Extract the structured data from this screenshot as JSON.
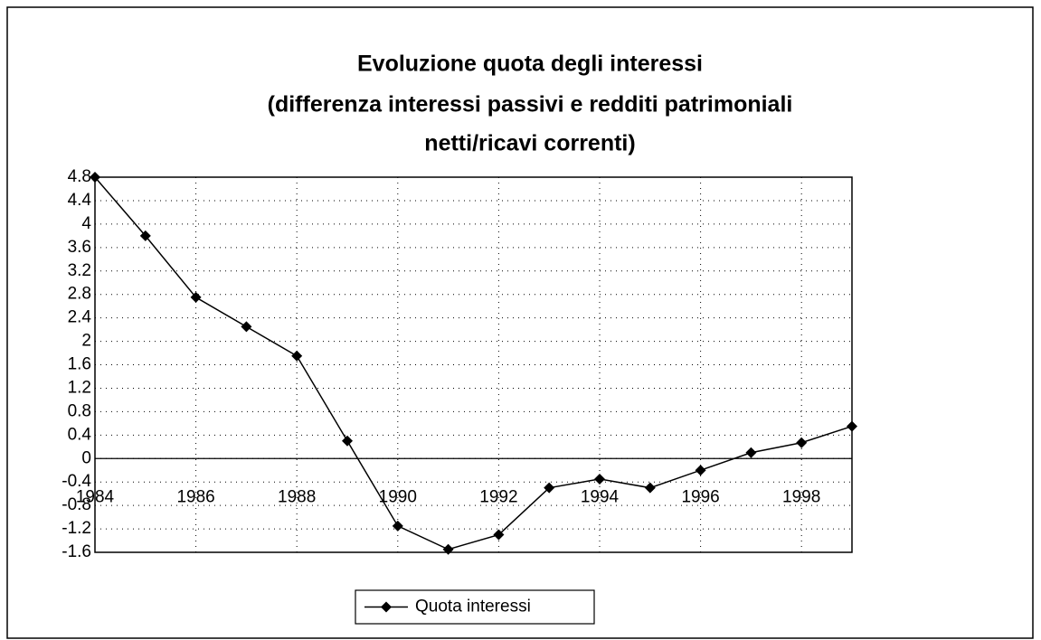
{
  "chart_data": {
    "type": "line",
    "title": [
      "Evoluzione quota degli interessi",
      "(differenza interessi passivi e redditi patrimoniali",
      "netti/ricavi correnti)"
    ],
    "x": [
      1984,
      1985,
      1986,
      1987,
      1988,
      1989,
      1990,
      1991,
      1992,
      1993,
      1994,
      1995,
      1996,
      1997,
      1998,
      1999
    ],
    "series": [
      {
        "name": "Quota interessi",
        "color": "#000000",
        "values": [
          4.8,
          3.8,
          2.75,
          2.25,
          1.75,
          0.3,
          -1.15,
          -1.55,
          -1.3,
          -0.5,
          -0.35,
          -0.5,
          -0.2,
          0.1,
          0.27,
          0.55
        ]
      }
    ],
    "xlim": [
      1984,
      1999
    ],
    "xticks": [
      1984,
      1986,
      1988,
      1990,
      1992,
      1994,
      1996,
      1998
    ],
    "ylim": [
      -1.6,
      4.8
    ],
    "yticks": [
      4.8,
      4.4,
      4,
      3.6,
      3.2,
      2.8,
      2.4,
      2,
      1.6,
      1.2,
      0.8,
      0.4,
      0,
      -0.4,
      -0.8,
      -1.2,
      -1.6
    ],
    "grid": true,
    "legend": "bottom"
  }
}
